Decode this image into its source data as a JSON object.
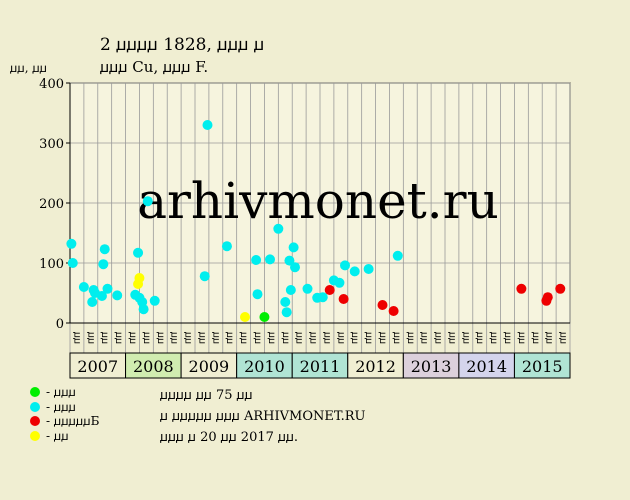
{
  "header": {
    "title_line1": "2 ꙡꙡꙡꙡ 1828, ꙡꙡꙡ ꙡ",
    "title_line2": "ꙡꙡꙡ Cu, ꙡꙡꙡ F."
  },
  "watermark": "arhivmonet.ru",
  "legend": [
    {
      "label": "- ꙡꙡꙡ",
      "color": "#00ee00"
    },
    {
      "label": "- ꙡꙡꙡ",
      "color": "#00eeee"
    },
    {
      "label": "- ꙡꙡꙡꙡꙡБ",
      "color": "#ee0000"
    },
    {
      "label": "- ꙡꙡ",
      "color": "#ffff00"
    }
  ],
  "notes": {
    "line1": "ꙡꙡꙡꙡ ꙡꙡ 75 ꙡꙡ",
    "line2": "ꙡ ꙡꙡꙡꙡꙡ ꙡꙡꙡ ARHIVMONET.RU",
    "line3": "ꙡꙡꙡ ꙡ 20 ꙡꙡ 2017 ꙡꙡ."
  },
  "chart_data": {
    "type": "scatter",
    "ylabel": "ꙡꙡ, ꙡꙡ",
    "ylim": [
      0,
      400
    ],
    "yticks": [
      0,
      100,
      200,
      300,
      400
    ],
    "grid": true,
    "years": [
      {
        "label": "2007",
        "color": "#f0eed2"
      },
      {
        "label": "2008",
        "color": "#d0ecb0"
      },
      {
        "label": "2009",
        "color": "#f0eed2"
      },
      {
        "label": "2010",
        "color": "#b0e4d4"
      },
      {
        "label": "2011",
        "color": "#b0e4d4"
      },
      {
        "label": "2012",
        "color": "#f0eed2"
      },
      {
        "label": "2013",
        "color": "#dcd0dc"
      },
      {
        "label": "2014",
        "color": "#d4d4ec"
      },
      {
        "label": "2015",
        "color": "#b0e4d4"
      }
    ],
    "month_labels": [
      "ꙡꙡ",
      "ꙡꙡ",
      "ꙡꙡ",
      "ꙡꙡ",
      "ꙡꙡ",
      "ꙡꙡ",
      "ꙡꙡ",
      "ꙡꙡ",
      "ꙡꙡ",
      "ꙡꙡ",
      "ꙡꙡ",
      "ꙡꙡ",
      "ꙡꙡ",
      "ꙡꙡ",
      "ꙡꙡ",
      "ꙡꙡ",
      "ꙡꙡ",
      "ꙡꙡ",
      "ꙡꙡ",
      "ꙡꙡ",
      "ꙡꙡ",
      "ꙡꙡ",
      "ꙡꙡ",
      "ꙡꙡ",
      "ꙡꙡ",
      "ꙡꙡ",
      "ꙡꙡ",
      "ꙡꙡ",
      "ꙡꙡ",
      "ꙡꙡ",
      "ꙡꙡ",
      "ꙡꙡ",
      "ꙡꙡ",
      "ꙡꙡ",
      "ꙡꙡ",
      "ꙡꙡ"
    ],
    "series": [
      {
        "color": "#00ee00",
        "points": [
          [
            14.0,
            10
          ]
        ]
      },
      {
        "color": "#00eeee",
        "points": [
          [
            0.1,
            132
          ],
          [
            0.2,
            100
          ],
          [
            1.0,
            60
          ],
          [
            1.6,
            35
          ],
          [
            1.7,
            55
          ],
          [
            1.8,
            50
          ],
          [
            2.3,
            45
          ],
          [
            2.4,
            98
          ],
          [
            2.5,
            123
          ],
          [
            2.7,
            57
          ],
          [
            3.4,
            46
          ],
          [
            4.7,
            47
          ],
          [
            4.9,
            117
          ],
          [
            5.0,
            42
          ],
          [
            5.2,
            35
          ],
          [
            5.3,
            23
          ],
          [
            5.6,
            203
          ],
          [
            6.1,
            37
          ],
          [
            9.7,
            78
          ],
          [
            9.9,
            330
          ],
          [
            11.3,
            128
          ],
          [
            13.4,
            105
          ],
          [
            13.5,
            48
          ],
          [
            14.4,
            106
          ],
          [
            15.0,
            157
          ],
          [
            15.5,
            35
          ],
          [
            15.6,
            18
          ],
          [
            15.8,
            104
          ],
          [
            15.9,
            55
          ],
          [
            16.1,
            126
          ],
          [
            16.2,
            93
          ],
          [
            17.1,
            57
          ],
          [
            17.8,
            42
          ],
          [
            18.2,
            43
          ],
          [
            19.0,
            71
          ],
          [
            19.4,
            67
          ],
          [
            19.8,
            96
          ],
          [
            20.5,
            86
          ],
          [
            21.5,
            90
          ],
          [
            23.6,
            112
          ]
        ]
      },
      {
        "color": "#ee0000",
        "points": [
          [
            18.7,
            55
          ],
          [
            19.7,
            40
          ],
          [
            22.5,
            30
          ],
          [
            23.3,
            20
          ],
          [
            32.5,
            57
          ],
          [
            34.3,
            37
          ],
          [
            34.4,
            43
          ],
          [
            35.3,
            57
          ]
        ]
      },
      {
        "color": "#ffff00",
        "points": [
          [
            4.9,
            65
          ],
          [
            5.0,
            75
          ],
          [
            12.6,
            10
          ]
        ]
      }
    ]
  }
}
